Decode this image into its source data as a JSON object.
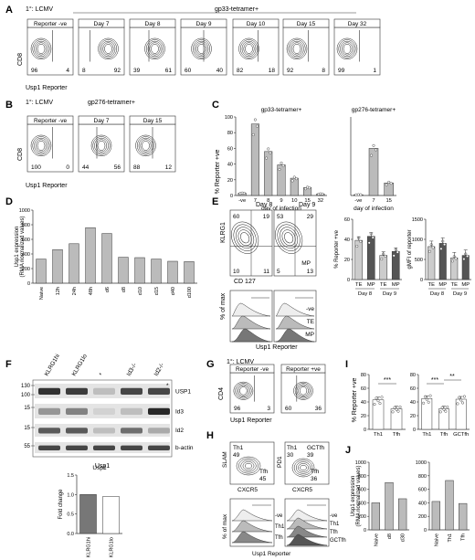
{
  "panels": {
    "A": {
      "letter": "A",
      "infection": "1°: LCMV",
      "tetramer": "gp33-tetramer+",
      "ylabel": "CD8",
      "xlabel": "Usp1 Reporter",
      "plots": [
        {
          "label": "Reporter -ve",
          "left": "96",
          "right": "4"
        },
        {
          "label": "Day 7",
          "left": "8",
          "right": "92"
        },
        {
          "label": "Day 8",
          "left": "39",
          "right": "61"
        },
        {
          "label": "Day 9",
          "left": "60",
          "right": "40"
        },
        {
          "label": "Day 10",
          "left": "82",
          "right": "18"
        },
        {
          "label": "Day 15",
          "left": "92",
          "right": "8"
        },
        {
          "label": "Day 32",
          "left": "99",
          "right": "1"
        }
      ]
    },
    "B": {
      "letter": "B",
      "infection": "1°: LCMV",
      "tetramer": "gp276-tetramer+",
      "ylabel": "CD8",
      "xlabel": "Usp1 Reporter",
      "plots": [
        {
          "label": "Reporter -ve",
          "left": "100",
          "right": "0"
        },
        {
          "label": "Day 7",
          "left": "44",
          "right": "56"
        },
        {
          "label": "Day 15",
          "left": "88",
          "right": "12"
        }
      ]
    },
    "C": {
      "letter": "C",
      "ylabel": "% Reporter +ve",
      "xlabel": "day of infection"
    },
    "D": {
      "letter": "D"
    },
    "E": {
      "letter": "E",
      "day8": "Day 8",
      "day9": "Day 9",
      "klrg1": "KLRG1",
      "cd127": "CD 127",
      "q8": [
        "60",
        "19",
        "10",
        "11"
      ],
      "q9": [
        "53",
        "29",
        "5",
        "13"
      ],
      "mp": "MP",
      "max": "% of max",
      "reporter": "Usp1 Reporter",
      "hist": [
        "-ve",
        "TE",
        "MP"
      ],
      "bar_ylabel": "% Reporter +ve",
      "gmfi_ylabel": "gMFI of reporter"
    },
    "F": {
      "letter": "F",
      "lanes": [
        "KLRG1hi",
        "KLRG1lo",
        "*",
        "Id3-/-",
        "Id2-/-"
      ],
      "mw": [
        "130",
        "100",
        "15",
        "15",
        "55"
      ],
      "bands": [
        "USP1",
        "Id3",
        "Id2",
        "b-actin"
      ],
      "star": "*",
      "sub_title": "Usp1",
      "sub_ylabel": "Fold change"
    },
    "G": {
      "letter": "G",
      "infection": "1°: LCMV",
      "plots": [
        {
          "label": "Reporter -ve",
          "left": "96",
          "right": "3"
        },
        {
          "label": "Reporter +ve",
          "left": "60",
          "right": "36"
        }
      ],
      "ylabel": "CD4",
      "xlabel": "Usp1 Reporter"
    },
    "H": {
      "letter": "H",
      "slam": "SLAM",
      "pd1": "PD1",
      "cxcr5": "CXCR5",
      "th1": "Th1",
      "th1v": "49",
      "tfh": "Tfh",
      "tfhv": "45",
      "th1b": "Th1",
      "gctfh": "GCTfh",
      "th1bv": "30",
      "gcv": "39",
      "tfhb": "Tfh",
      "tfhbv": "36",
      "max": "% of max",
      "reporter": "Usp1 Reporter",
      "hist1": [
        "-ve",
        "Th1",
        "Tfh"
      ],
      "hist2": [
        "-ve",
        "Th1",
        "Tfh",
        "GCTfh"
      ]
    },
    "I": {
      "letter": "I",
      "ylabel": "% Reporter +ve",
      "sig1": "***",
      "sig2": "***",
      "sig3": "**"
    },
    "J": {
      "letter": "J"
    }
  },
  "chart_data": [
    {
      "id": "C1",
      "type": "bar",
      "title": "gp33-tetramer+",
      "ylabel": "% Reporter +ve",
      "xlabel": "day of infection",
      "categories": [
        "-ve",
        "7",
        "8",
        "9",
        "10",
        "15",
        "32"
      ],
      "values": [
        3,
        91,
        56,
        39,
        22,
        10,
        2
      ],
      "ylim": [
        0,
        100
      ],
      "yticks": [
        "0",
        "20",
        "40",
        "60",
        "80",
        "100"
      ]
    },
    {
      "id": "C2",
      "type": "bar",
      "title": "gp276-tetramer+",
      "xlabel": "day of infection",
      "categories": [
        "-ve",
        "7",
        "15"
      ],
      "values": [
        1,
        60,
        16
      ],
      "ylim": [
        0,
        100
      ]
    },
    {
      "id": "D",
      "type": "bar",
      "ylabel": "Usp1 expression (RMA normalized values)",
      "categories": [
        "Naive",
        "12h",
        "24h",
        "48h",
        "d6",
        "d8",
        "d10",
        "d15",
        "d40",
        "d100"
      ],
      "values": [
        330,
        460,
        540,
        760,
        680,
        355,
        350,
        330,
        300,
        295
      ],
      "ylim": [
        0,
        1000
      ],
      "yticks": [
        "0",
        "200",
        "400",
        "600",
        "800",
        "1000"
      ]
    },
    {
      "id": "E1",
      "type": "bar",
      "ylabel": "% Reporter +ve",
      "categories": [
        "TE",
        "MP",
        "TE",
        "MP"
      ],
      "groups": [
        "Day 8",
        "Day 9"
      ],
      "values": [
        39,
        43,
        24,
        28
      ],
      "ylim": [
        0,
        60
      ],
      "yticks": [
        "0",
        "20",
        "40",
        "60"
      ]
    },
    {
      "id": "E2",
      "type": "bar",
      "ylabel": "gMFI of reporter",
      "categories": [
        "TE",
        "MP",
        "TE",
        "MP"
      ],
      "groups": [
        "Day 8",
        "Day 9"
      ],
      "values": [
        820,
        900,
        540,
        600
      ],
      "ylim": [
        0,
        1500
      ],
      "yticks": [
        "0",
        "500",
        "1000",
        "1500"
      ]
    },
    {
      "id": "F",
      "type": "bar",
      "title": "Usp1",
      "ylabel": "Fold change",
      "categories": [
        "KLRG1hi",
        "KLRG1lo"
      ],
      "values": [
        1.0,
        0.95
      ],
      "ylim": [
        0,
        1.5
      ],
      "yticks": [
        "0.0",
        "0.5",
        "1.0",
        "1.5"
      ]
    },
    {
      "id": "I1",
      "type": "bar",
      "ylabel": "% Reporter +ve",
      "categories": [
        "Th1",
        "Tfh"
      ],
      "values": [
        43,
        30
      ],
      "ylim": [
        0,
        80
      ],
      "yticks": [
        "0",
        "20",
        "40",
        "60",
        "80"
      ]
    },
    {
      "id": "I2",
      "type": "bar",
      "categories": [
        "Th1",
        "Tfh",
        "GCTfh"
      ],
      "values": [
        45,
        30,
        44
      ],
      "ylim": [
        0,
        80
      ],
      "yticks": [
        "0",
        "20",
        "40",
        "60",
        "80"
      ]
    },
    {
      "id": "J1",
      "type": "bar",
      "ylabel": "Usp1 expression (RMA normalized values)",
      "categories": [
        "Naive",
        "d8",
        "d30"
      ],
      "values": [
        400,
        700,
        460
      ],
      "ylim": [
        0,
        1000
      ],
      "yticks": [
        "0",
        "200",
        "400",
        "600",
        "800",
        "1000"
      ]
    },
    {
      "id": "J2",
      "type": "bar",
      "categories": [
        "Naive",
        "Th1",
        "Tfh"
      ],
      "values": [
        420,
        730,
        390
      ],
      "ylim": [
        0,
        1000
      ],
      "yticks": [
        "0",
        "200",
        "400",
        "600",
        "800",
        "1000"
      ]
    }
  ]
}
